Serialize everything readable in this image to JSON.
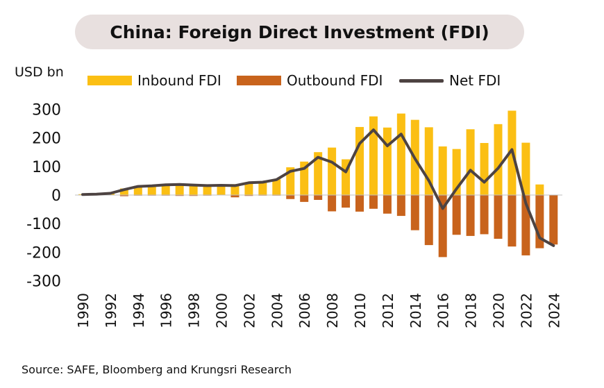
{
  "header": {
    "title": "China: Foreign Direct Investment (FDI)"
  },
  "unit_label": "USD bn",
  "legend": {
    "inbound": "Inbound FDI",
    "outbound": "Outbound FDI",
    "net": "Net FDI"
  },
  "source": "Source: SAFE, Bloomberg and Krungsri Research",
  "colors": {
    "inbound": "#fbbf14",
    "outbound": "#c8631c",
    "net": "#4d4342",
    "title_bg": "#e8e0df"
  },
  "chart_data": {
    "type": "bar",
    "title": "China: Foreign Direct Investment (FDI)",
    "ylabel": "USD bn",
    "ylim": [
      -300,
      300
    ],
    "yticks": [
      300,
      200,
      100,
      0,
      -100,
      -200,
      -300
    ],
    "xtick_labels": [
      "1990",
      "1992",
      "1994",
      "1996",
      "1998",
      "2000",
      "2002",
      "2004",
      "2006",
      "2008",
      "2010",
      "2012",
      "2014",
      "2016",
      "2018",
      "2020",
      "2022",
      "2024"
    ],
    "x": [
      1990,
      1991,
      1992,
      1993,
      1994,
      1995,
      1996,
      1997,
      1998,
      1999,
      2000,
      2001,
      2002,
      2003,
      2004,
      2005,
      2006,
      2007,
      2008,
      2009,
      2010,
      2011,
      2012,
      2013,
      2014,
      2015,
      2016,
      2017,
      2018,
      2019,
      2020,
      2021,
      2022,
      2023,
      2024
    ],
    "series": [
      {
        "name": "Inbound FDI",
        "kind": "bar",
        "values": [
          3,
          4,
          7,
          23,
          32,
          34,
          38,
          40,
          38,
          35,
          35,
          38,
          45,
          47,
          55,
          97,
          117,
          150,
          166,
          125,
          238,
          275,
          236,
          285,
          263,
          237,
          170,
          161,
          230,
          182,
          248,
          295,
          183,
          37,
          -3
        ]
      },
      {
        "name": "Outbound FDI",
        "kind": "bar",
        "values": [
          -1,
          -1,
          -1,
          -4,
          -2,
          -2,
          -2,
          -3,
          -3,
          -2,
          -1,
          -8,
          -3,
          -2,
          -2,
          -14,
          -24,
          -17,
          -57,
          -44,
          -58,
          -48,
          -65,
          -73,
          -123,
          -175,
          -217,
          -139,
          -143,
          -137,
          -153,
          -180,
          -211,
          -186,
          -173
        ]
      },
      {
        "name": "Net FDI",
        "kind": "line",
        "values": [
          2,
          3,
          6,
          19,
          30,
          32,
          36,
          37,
          35,
          33,
          34,
          33,
          43,
          45,
          54,
          83,
          93,
          132,
          115,
          81,
          180,
          228,
          172,
          213,
          127,
          50,
          -47,
          22,
          87,
          45,
          94,
          159,
          -29,
          -150,
          -177
        ]
      }
    ]
  }
}
